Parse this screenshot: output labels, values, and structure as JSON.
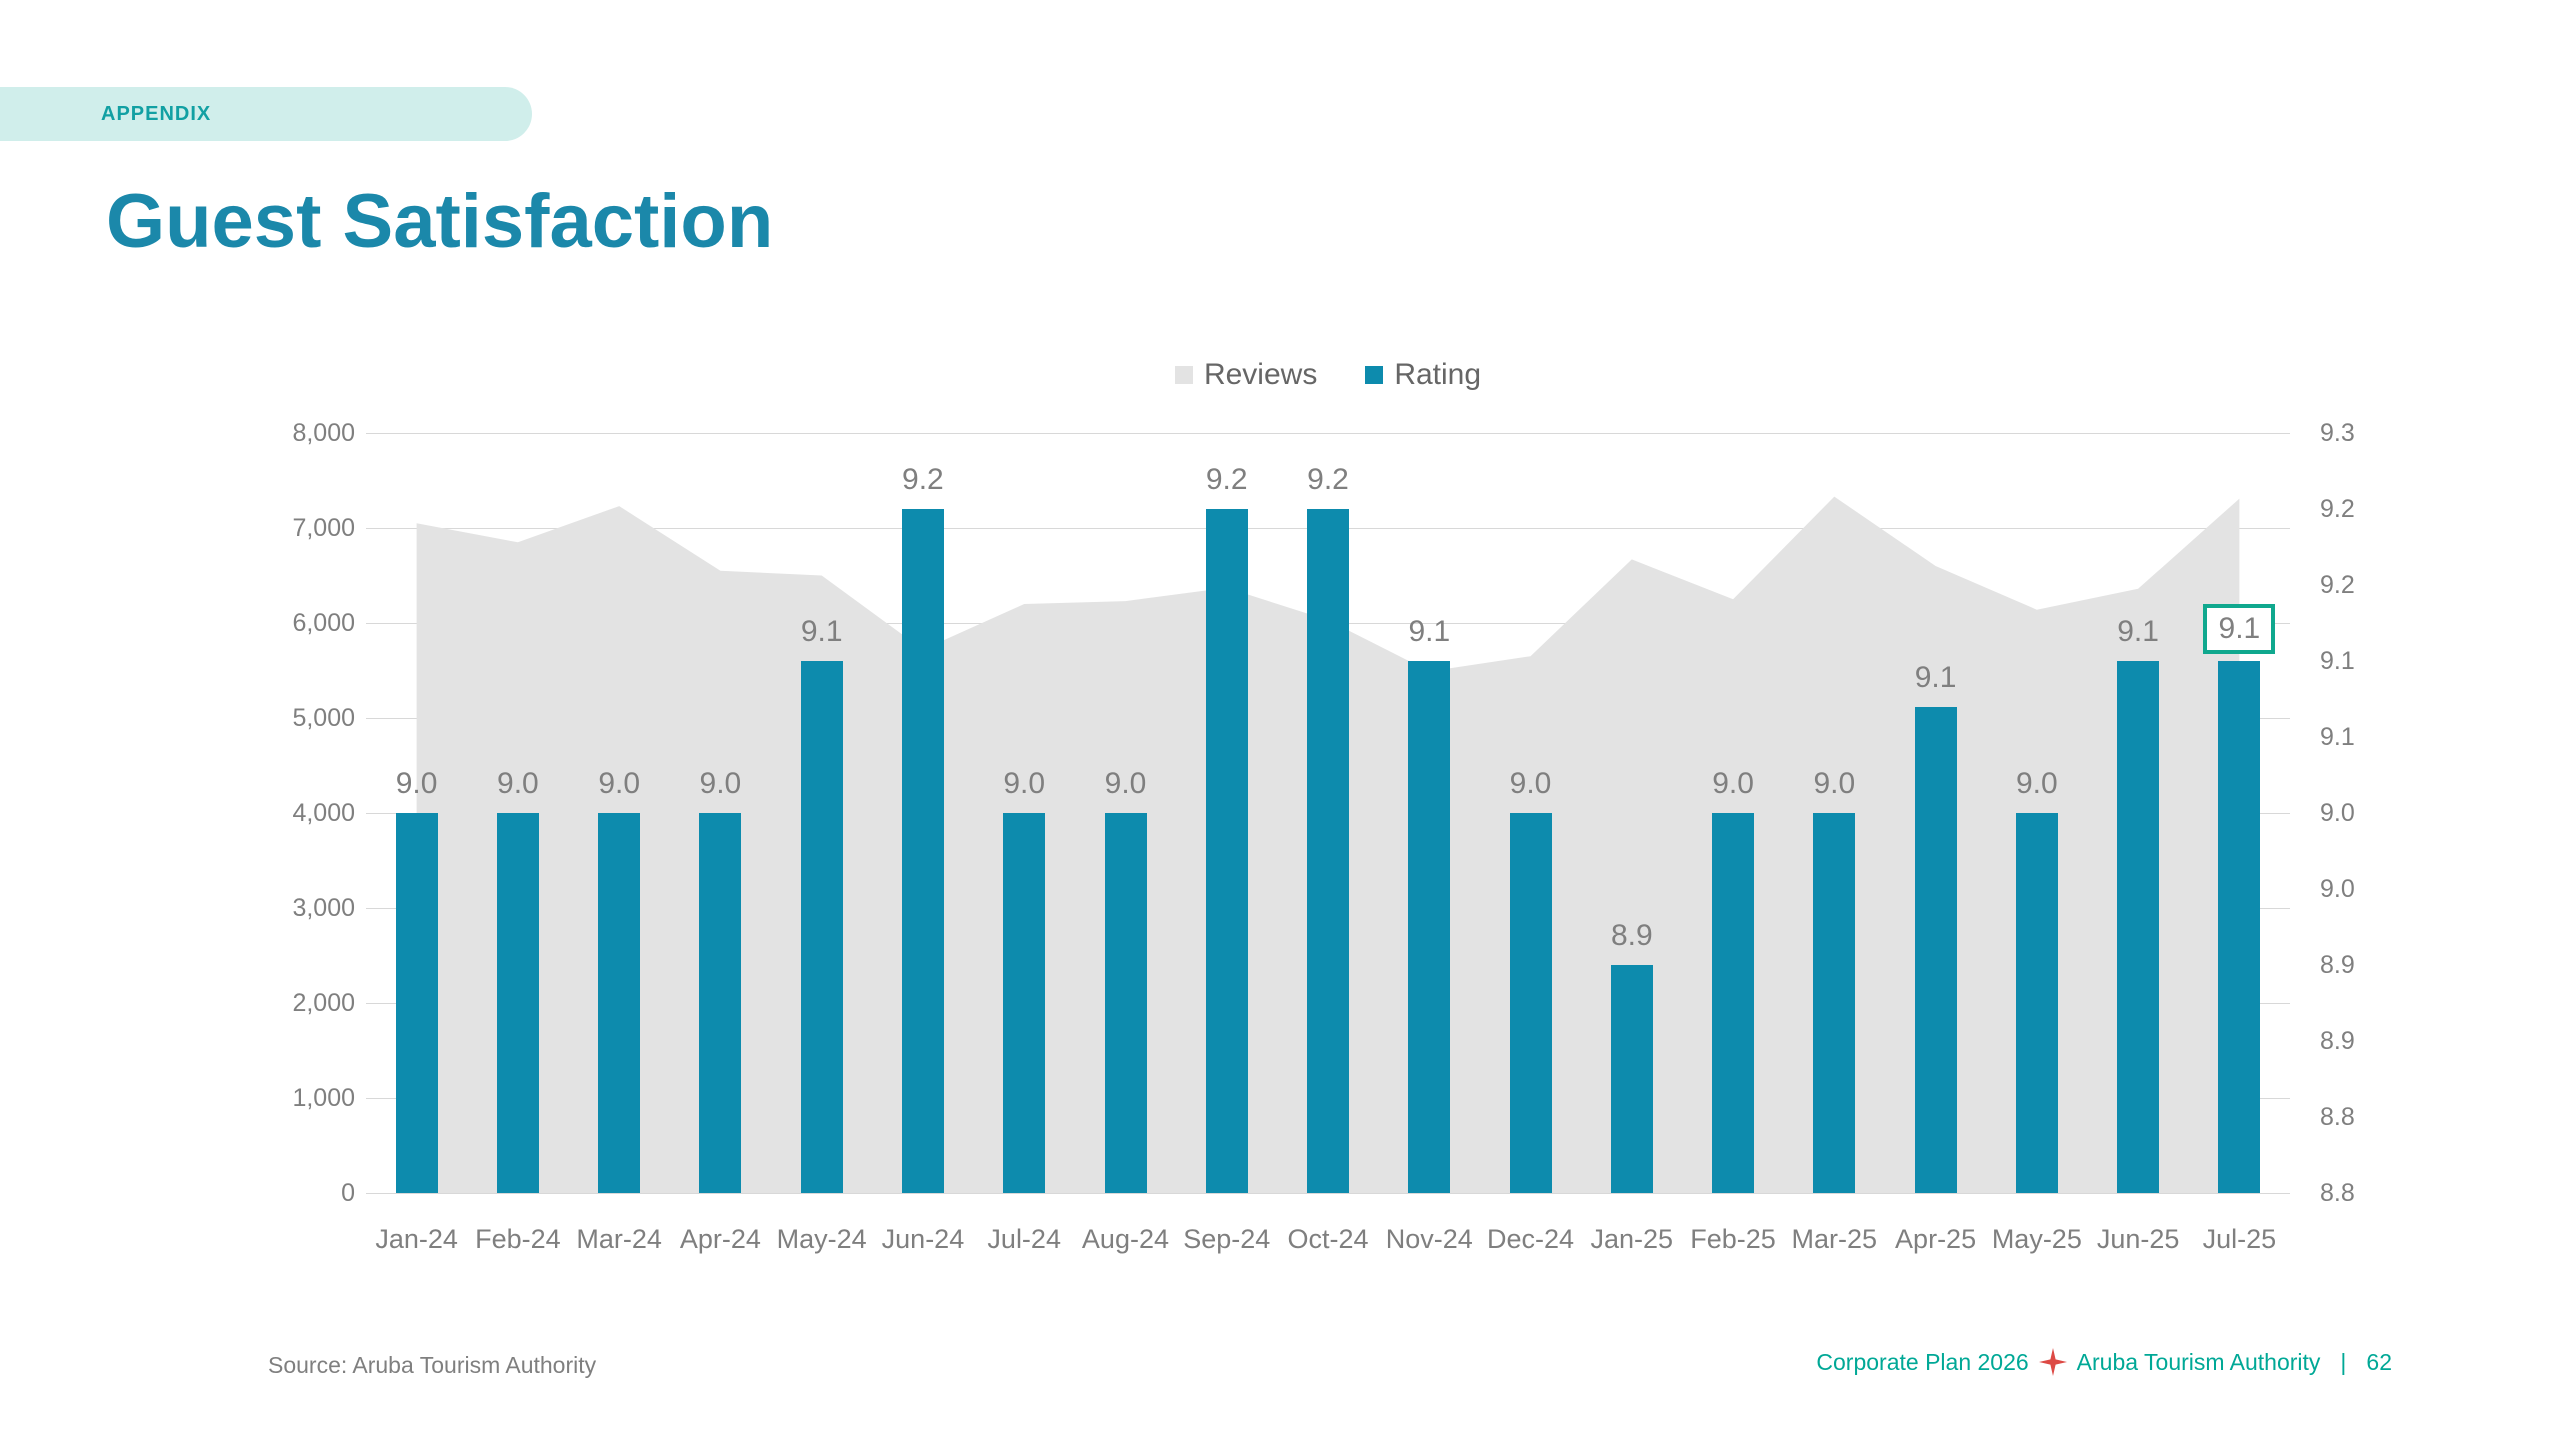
{
  "slide": {
    "tag": "APPENDIX",
    "title": "Guest Satisfaction",
    "source": "Source: Aruba Tourism Authority",
    "footer": {
      "plan": "Corporate Plan 2026",
      "org": "Aruba Tourism Authority",
      "separator": "|",
      "page": "62"
    }
  },
  "colors": {
    "title_teal": "#1b88aa",
    "bar_teal": "#0d8bad",
    "area_gray": "#e3e3e3",
    "appendix_bg": "#d0eeeb",
    "appendix_text": "#12a0a3",
    "footer_teal": "#00a896",
    "star_red": "#dd4a45",
    "highlight_box": "#10a88e",
    "label_gray": "#7f7f7f",
    "legend_text": "#666666",
    "gridline": "#d8d8d8"
  },
  "chart_data": {
    "type": "combo",
    "title": "",
    "categories": [
      "Jan-24",
      "Feb-24",
      "Mar-24",
      "Apr-24",
      "May-24",
      "Jun-24",
      "Jul-24",
      "Aug-24",
      "Sep-24",
      "Oct-24",
      "Nov-24",
      "Dec-24",
      "Jan-25",
      "Feb-25",
      "Mar-25",
      "Apr-25",
      "May-25",
      "Jun-25",
      "Jul-25"
    ],
    "series": [
      {
        "name": "Reviews",
        "type": "area",
        "axis": "left",
        "color": "#e3e3e3",
        "values": [
          7050,
          6850,
          7230,
          6550,
          6500,
          5720,
          6200,
          6230,
          6370,
          6030,
          5490,
          5650,
          6670,
          6250,
          7330,
          6600,
          6140,
          6360,
          7310
        ]
      },
      {
        "name": "Rating",
        "type": "bar",
        "axis": "right",
        "color": "#0d8bad",
        "values": [
          9.0,
          9.0,
          9.0,
          9.0,
          9.1,
          9.2,
          9.0,
          9.0,
          9.2,
          9.2,
          9.1,
          9.0,
          8.9,
          9.0,
          9.0,
          9.07,
          9.0,
          9.1,
          9.1
        ],
        "labels": [
          "9.0",
          "9.0",
          "9.0",
          "9.0",
          "9.1",
          "9.2",
          "9.0",
          "9.0",
          "9.2",
          "9.2",
          "9.1",
          "9.0",
          "8.9",
          "9.0",
          "9.0",
          "9.1",
          "9.0",
          "9.1",
          "9.1"
        ]
      }
    ],
    "left_axis": {
      "min": 0,
      "max": 8000,
      "ticks": [
        "8,000",
        "7,000",
        "6,000",
        "5,000",
        "4,000",
        "3,000",
        "2,000",
        "1,000",
        "0"
      ]
    },
    "right_axis": {
      "min": 8.75,
      "max": 9.25,
      "ticks": [
        "9.3",
        "9.2",
        "9.2",
        "9.1",
        "9.1",
        "9.0",
        "9.0",
        "8.9",
        "8.9",
        "8.8",
        "8.8"
      ]
    },
    "legend": {
      "position": "top",
      "items": [
        "Reviews",
        "Rating"
      ]
    },
    "highlight_index": 18,
    "grid": true
  }
}
